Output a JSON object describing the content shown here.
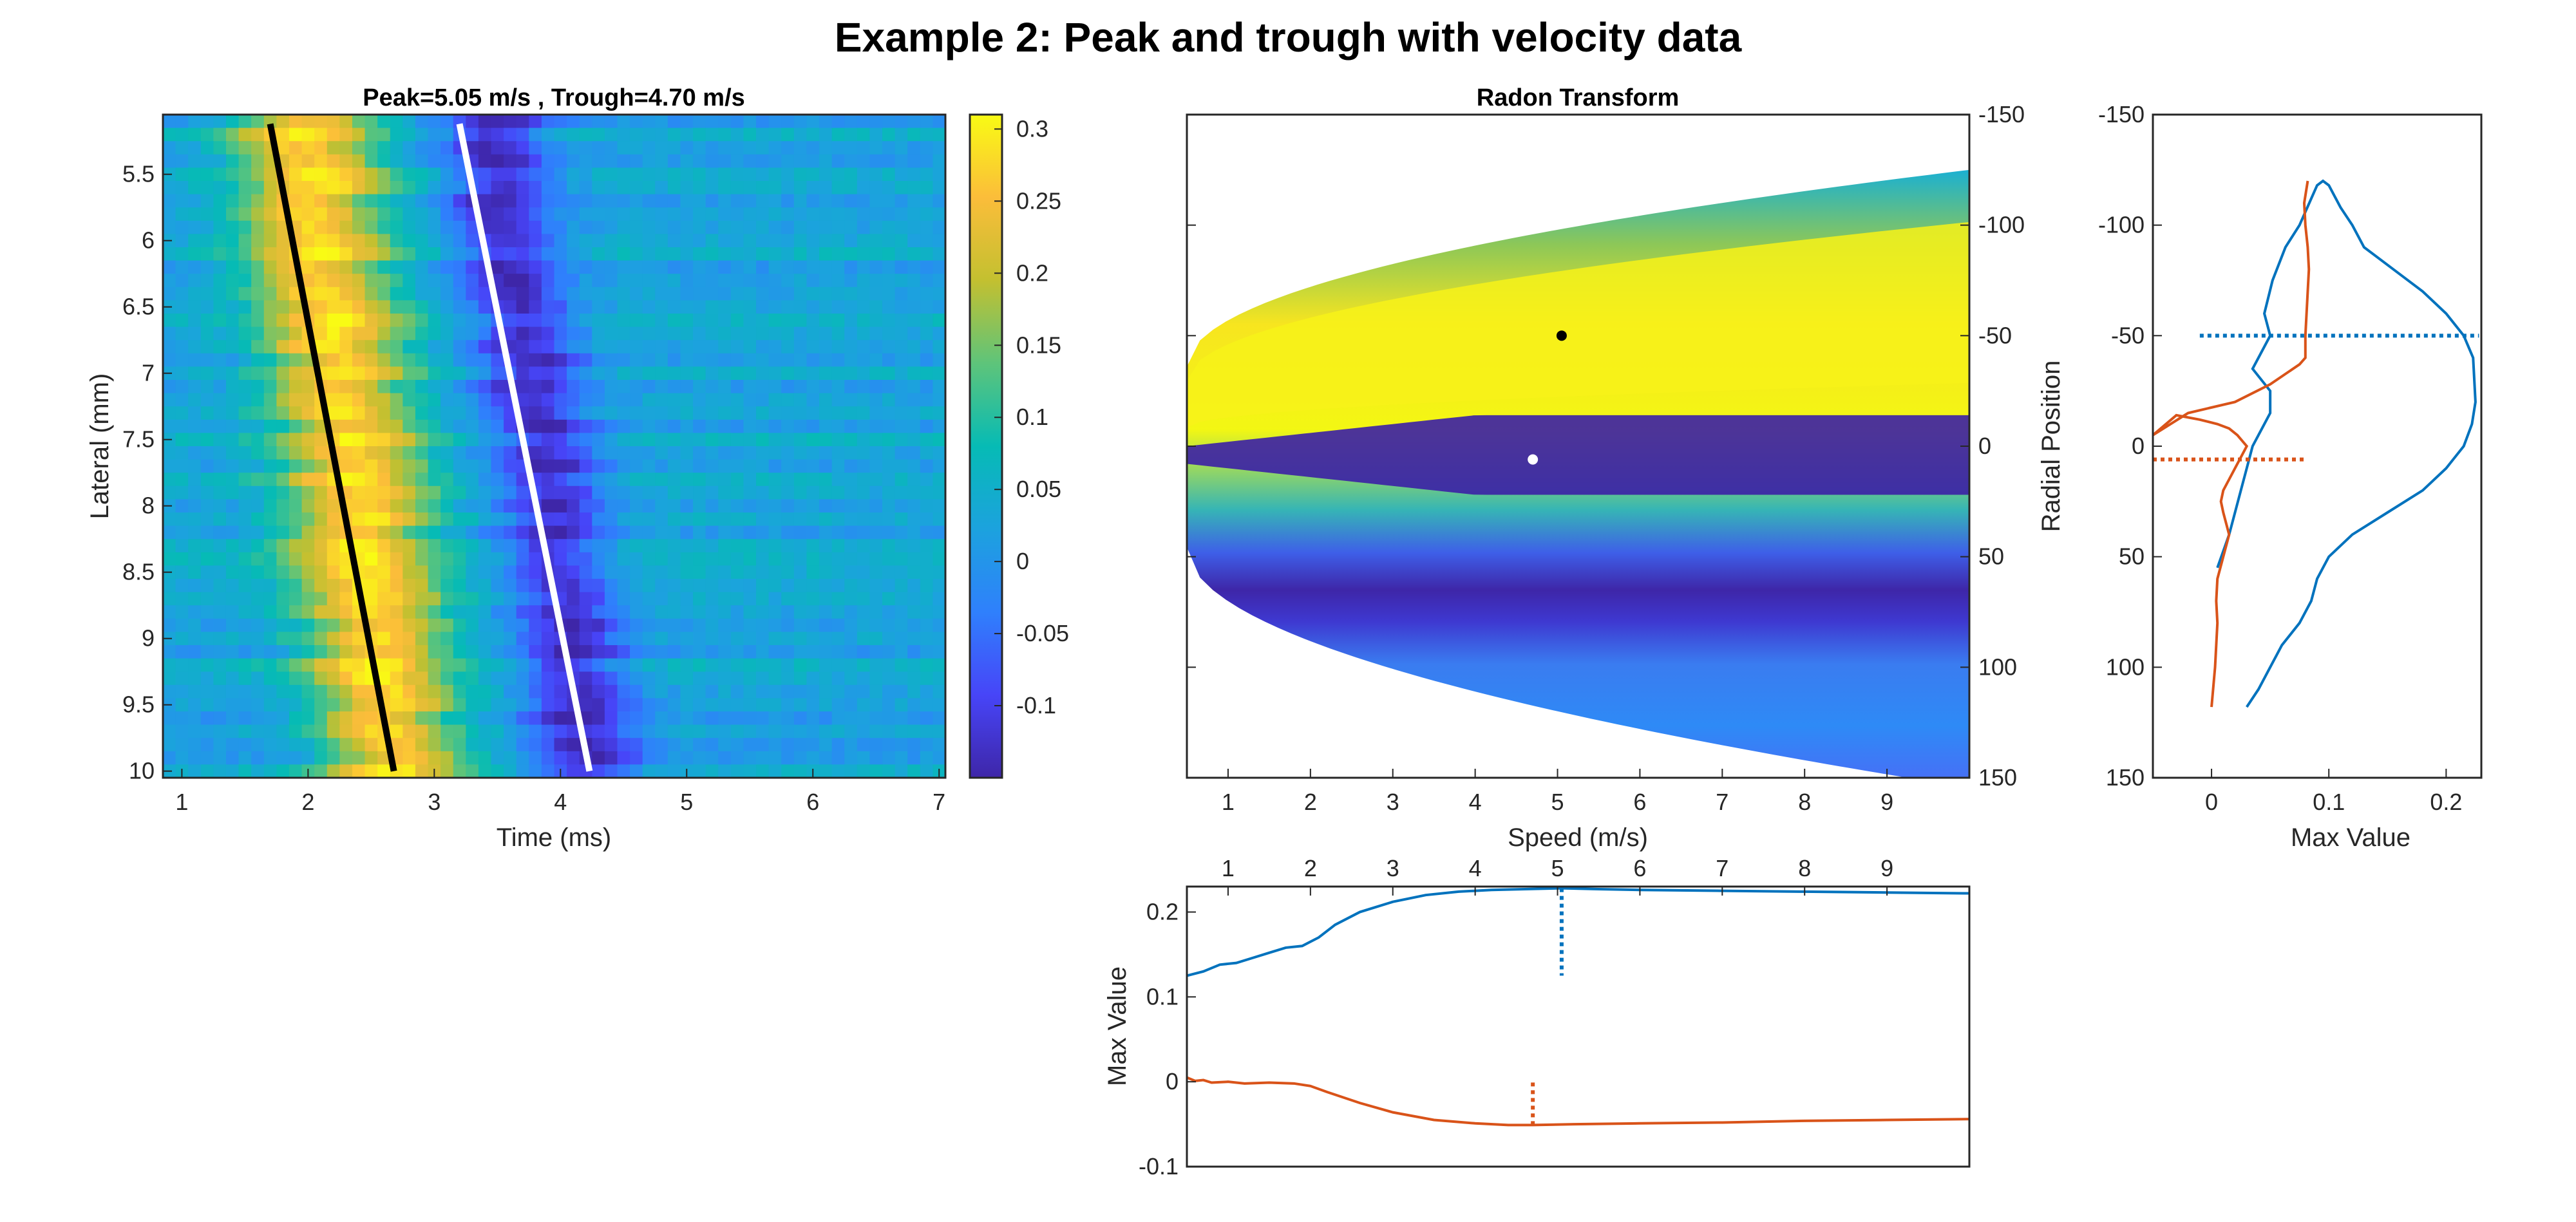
{
  "figure_title": "Example 2: Peak and trough with velocity data",
  "chart_data": [
    {
      "id": "heatmap",
      "type": "heatmap",
      "title": "Peak=5.05 m/s , Trough=4.70 m/s",
      "xlabel": "Time (ms)",
      "ylabel": "Lateral (mm)",
      "xlim": [
        0.85,
        7.05
      ],
      "ylim": [
        5.05,
        10.05
      ],
      "xticks": [
        1,
        2,
        3,
        4,
        5,
        6,
        7
      ],
      "yticks": [
        5.5,
        6,
        6.5,
        7,
        7.5,
        8,
        8.5,
        9,
        9.5,
        10
      ],
      "colorbar": {
        "ticks": [
          0.3,
          0.25,
          0.2,
          0.15,
          0.1,
          0.05,
          0,
          -0.05,
          -0.1
        ],
        "range": [
          -0.15,
          0.31
        ]
      },
      "lines": [
        {
          "name": "peak",
          "color": "#000000",
          "x": [
            1.7,
            2.68
          ],
          "y": [
            5.12,
            10.0
          ]
        },
        {
          "name": "trough",
          "color": "#ffffff",
          "x": [
            3.2,
            4.23
          ],
          "y": [
            5.12,
            10.0
          ]
        }
      ]
    },
    {
      "id": "radon",
      "type": "heatmap",
      "title": "Radon Transform",
      "xlabel": "Speed (m/s)",
      "ylabel": "Radial Position",
      "xlim": [
        0.5,
        10
      ],
      "ylim": [
        -150,
        150
      ],
      "xticks": [
        1,
        2,
        3,
        4,
        5,
        6,
        7,
        8,
        9
      ],
      "yticks": [
        -150,
        -100,
        -50,
        0,
        50,
        100,
        150
      ],
      "peak_point": {
        "speed": 5.05,
        "radial": -50
      },
      "trough_point": {
        "speed": 4.7,
        "radial": 6
      }
    },
    {
      "id": "side",
      "type": "line",
      "xlabel": "Max Value",
      "xlim": [
        -0.05,
        0.23
      ],
      "ylim": [
        -150,
        150
      ],
      "xticks": [
        0,
        0.1,
        0.2
      ],
      "yticks": [
        -150,
        -100,
        -50,
        0,
        50,
        100,
        150
      ],
      "series": [
        {
          "color": "#0072BD",
          "x": [
            0.03,
            0.04,
            0.05,
            0.06,
            0.075,
            0.085,
            0.09,
            0.1,
            0.12,
            0.15,
            0.18,
            0.2,
            0.215,
            0.222,
            0.225,
            0.223,
            0.215,
            0.2,
            0.18,
            0.155,
            0.13,
            0.12,
            0.11,
            0.105,
            0.1,
            0.095,
            0.09,
            0.085,
            0.075,
            0.063,
            0.052,
            0.045,
            0.05,
            0.04,
            0.035,
            0.05,
            0.05,
            0.045,
            0.04,
            0.035,
            0.03,
            0.025,
            0.02,
            0.015,
            0.005
          ],
          "y": [
            118,
            110,
            100,
            90,
            80,
            70,
            60,
            50,
            40,
            30,
            20,
            10,
            0,
            -10,
            -20,
            -40,
            -50,
            -60,
            -70,
            -80,
            -90,
            -100,
            -108,
            -113,
            -118,
            -120,
            -118,
            -112,
            -100,
            -90,
            -75,
            -60,
            -50,
            -40,
            -35,
            -25,
            -15,
            -10,
            -5,
            0,
            10,
            20,
            30,
            40,
            55
          ]
        },
        {
          "color": "#D95319",
          "x": [
            0,
            0.003,
            0.005,
            0.004,
            0.005,
            0.01,
            0.015,
            0.01,
            0.008,
            0.01,
            0.015,
            0.02,
            0.025,
            0.03,
            0.022,
            0.015,
            0.005,
            -0.01,
            -0.03,
            -0.05,
            -0.02,
            0.02,
            0.05,
            0.075,
            0.08,
            0.08,
            0.081,
            0.082,
            0.083,
            0.082,
            0.08,
            0.079,
            0.082
          ],
          "y": [
            118,
            100,
            80,
            70,
            60,
            50,
            40,
            30,
            25,
            20,
            15,
            10,
            5,
            0,
            -5,
            -8,
            -10,
            -12,
            -14,
            -5,
            -15,
            -20,
            -28,
            -37,
            -40,
            -50,
            -60,
            -70,
            -80,
            -90,
            -100,
            -110,
            -120
          ]
        }
      ],
      "markers": [
        {
          "color": "#0072BD",
          "x": [
            -0.01,
            0.228
          ],
          "y": [
            -50,
            -50
          ]
        },
        {
          "color": "#D95319",
          "x": [
            -0.05,
            0.08
          ],
          "y": [
            6,
            6
          ]
        }
      ]
    },
    {
      "id": "bottom",
      "type": "line",
      "ylabel": "Max Value",
      "xlim": [
        0.5,
        10
      ],
      "ylim": [
        -0.1,
        0.23
      ],
      "xticks": [
        1,
        2,
        3,
        4,
        5,
        6,
        7,
        8,
        9
      ],
      "yticks": [
        -0.1,
        0,
        0.1,
        0.2
      ],
      "series": [
        {
          "color": "#0072BD",
          "x": [
            0.5,
            0.7,
            0.9,
            1.1,
            1.3,
            1.5,
            1.7,
            1.9,
            2.1,
            2.3,
            2.6,
            3.0,
            3.4,
            3.8,
            4.2,
            4.6,
            5.05,
            5.5,
            6,
            7,
            8,
            9,
            10
          ],
          "y": [
            0.125,
            0.13,
            0.138,
            0.14,
            0.146,
            0.152,
            0.158,
            0.16,
            0.17,
            0.185,
            0.2,
            0.212,
            0.22,
            0.224,
            0.226,
            0.227,
            0.228,
            0.227,
            0.226,
            0.225,
            0.224,
            0.223,
            0.222
          ]
        },
        {
          "color": "#D95319",
          "x": [
            0.5,
            0.6,
            0.7,
            0.8,
            1.0,
            1.2,
            1.5,
            1.8,
            2.0,
            2.2,
            2.6,
            3.0,
            3.5,
            4.0,
            4.4,
            4.7,
            5.2,
            6,
            7,
            8,
            9,
            10
          ],
          "y": [
            0.005,
            0.001,
            0.002,
            -0.001,
            0.0,
            -0.002,
            -0.001,
            -0.002,
            -0.005,
            -0.012,
            -0.025,
            -0.036,
            -0.045,
            -0.049,
            -0.051,
            -0.051,
            -0.05,
            -0.049,
            -0.048,
            -0.046,
            -0.045,
            -0.044
          ]
        }
      ],
      "markers": [
        {
          "color": "#0072BD",
          "x": [
            5.05,
            5.05
          ],
          "y": [
            0.228,
            0.125
          ]
        },
        {
          "color": "#D95319",
          "x": [
            4.7,
            4.7
          ],
          "y": [
            -0.051,
            0.0
          ]
        }
      ]
    }
  ]
}
